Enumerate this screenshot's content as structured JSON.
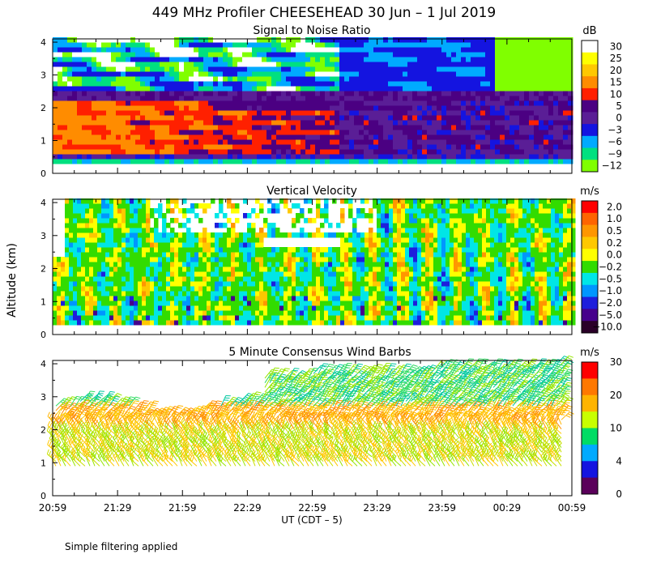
{
  "title": "449 MHz Profiler CHEESEHEAD 30 Jun –  1 Jul 2019",
  "y_axis_label": "Altitude (km)",
  "x_axis_label": "UT  (CDT – 5)",
  "footer_note": "Simple filtering applied",
  "chart_data": [
    {
      "type": "heatmap",
      "title": "Signal to Noise Ratio",
      "x_ticks": [
        "20:59",
        "21:29",
        "21:59",
        "22:29",
        "22:59",
        "23:29",
        "23:59",
        "00:29",
        "00:59"
      ],
      "y_ticks": [
        "0",
        "1",
        "2",
        "3",
        "4"
      ],
      "ylim": [
        0,
        4.1
      ],
      "colorbar": {
        "unit": "dB",
        "labels": [
          "30",
          "25",
          "20",
          "15",
          "10",
          "5",
          "0",
          "−3",
          "−6",
          "−9",
          "−12"
        ],
        "colors": [
          "#ffffff",
          "#ffff00",
          "#ffc800",
          "#ff8c00",
          "#ff2000",
          "#4b0082",
          "#5a1e96",
          "#1414e0",
          "#00aaff",
          "#00e080",
          "#80ff00"
        ]
      }
    },
    {
      "type": "heatmap",
      "title": "Vertical Velocity",
      "x_ticks": [
        "20:59",
        "21:29",
        "21:59",
        "22:29",
        "22:59",
        "23:29",
        "23:59",
        "00:29",
        "00:59"
      ],
      "y_ticks": [
        "0",
        "1",
        "2",
        "3",
        "4"
      ],
      "ylim": [
        0,
        4.1
      ],
      "colorbar": {
        "unit": "m/s",
        "labels": [
          "2.0",
          "1.0",
          "0.5",
          "0.2",
          "0.0",
          "−0.2",
          "−0.5",
          "−1.0",
          "−2.0",
          "−5.0",
          "−10.0"
        ],
        "colors": [
          "#ff0000",
          "#ff6400",
          "#ff9600",
          "#ffc800",
          "#ffff00",
          "#32dc00",
          "#00e6e6",
          "#0096ff",
          "#1e1edc",
          "#46008c",
          "#2a0028"
        ]
      }
    },
    {
      "type": "scatter",
      "title": "5 Minute Consensus Wind Barbs",
      "x_ticks": [
        "20:59",
        "21:29",
        "21:59",
        "22:29",
        "22:59",
        "23:29",
        "23:59",
        "00:29",
        "00:59"
      ],
      "y_ticks": [
        "0",
        "1",
        "2",
        "3",
        "4"
      ],
      "ylim": [
        0,
        4.1
      ],
      "colorbar": {
        "unit": "m/s",
        "labels": [
          "30",
          "20",
          "10",
          "4",
          "0"
        ],
        "colors": [
          "#ff0000",
          "#ff7800",
          "#ffb400",
          "#c8ff00",
          "#00dc64",
          "#00aaff",
          "#1414e0",
          "#5a005a"
        ]
      }
    }
  ]
}
